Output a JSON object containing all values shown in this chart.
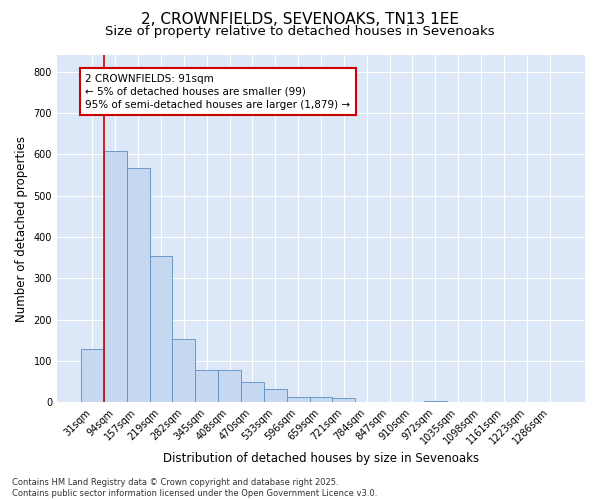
{
  "title_line1": "2, CROWNFIELDS, SEVENOAKS, TN13 1EE",
  "title_line2": "Size of property relative to detached houses in Sevenoaks",
  "xlabel": "Distribution of detached houses by size in Sevenoaks",
  "ylabel": "Number of detached properties",
  "categories": [
    "31sqm",
    "94sqm",
    "157sqm",
    "219sqm",
    "282sqm",
    "345sqm",
    "408sqm",
    "470sqm",
    "533sqm",
    "596sqm",
    "659sqm",
    "721sqm",
    "784sqm",
    "847sqm",
    "910sqm",
    "972sqm",
    "1035sqm",
    "1098sqm",
    "1161sqm",
    "1223sqm",
    "1286sqm"
  ],
  "values": [
    130,
    608,
    567,
    353,
    152,
    77,
    77,
    48,
    32,
    14,
    13,
    10,
    0,
    0,
    0,
    4,
    0,
    0,
    0,
    0,
    0
  ],
  "bar_color": "#c5d8f0",
  "bar_edge_color": "#5a8fc0",
  "plot_bg_color": "#dce8f8",
  "fig_bg_color": "#ffffff",
  "ylim": [
    0,
    840
  ],
  "yticks": [
    0,
    100,
    200,
    300,
    400,
    500,
    600,
    700,
    800
  ],
  "vline_color": "#cc0000",
  "vline_x": 0.5,
  "annotation_text": "2 CROWNFIELDS: 91sqm\n← 5% of detached houses are smaller (99)\n95% of semi-detached houses are larger (1,879) →",
  "annotation_box_color": "#cc0000",
  "annotation_bg_color": "#ffffff",
  "footnote": "Contains HM Land Registry data © Crown copyright and database right 2025.\nContains public sector information licensed under the Open Government Licence v3.0.",
  "grid_color": "#ffffff",
  "title_fontsize": 11,
  "subtitle_fontsize": 9.5,
  "tick_fontsize": 7,
  "label_fontsize": 8.5,
  "annot_fontsize": 7.5,
  "footnote_fontsize": 6
}
